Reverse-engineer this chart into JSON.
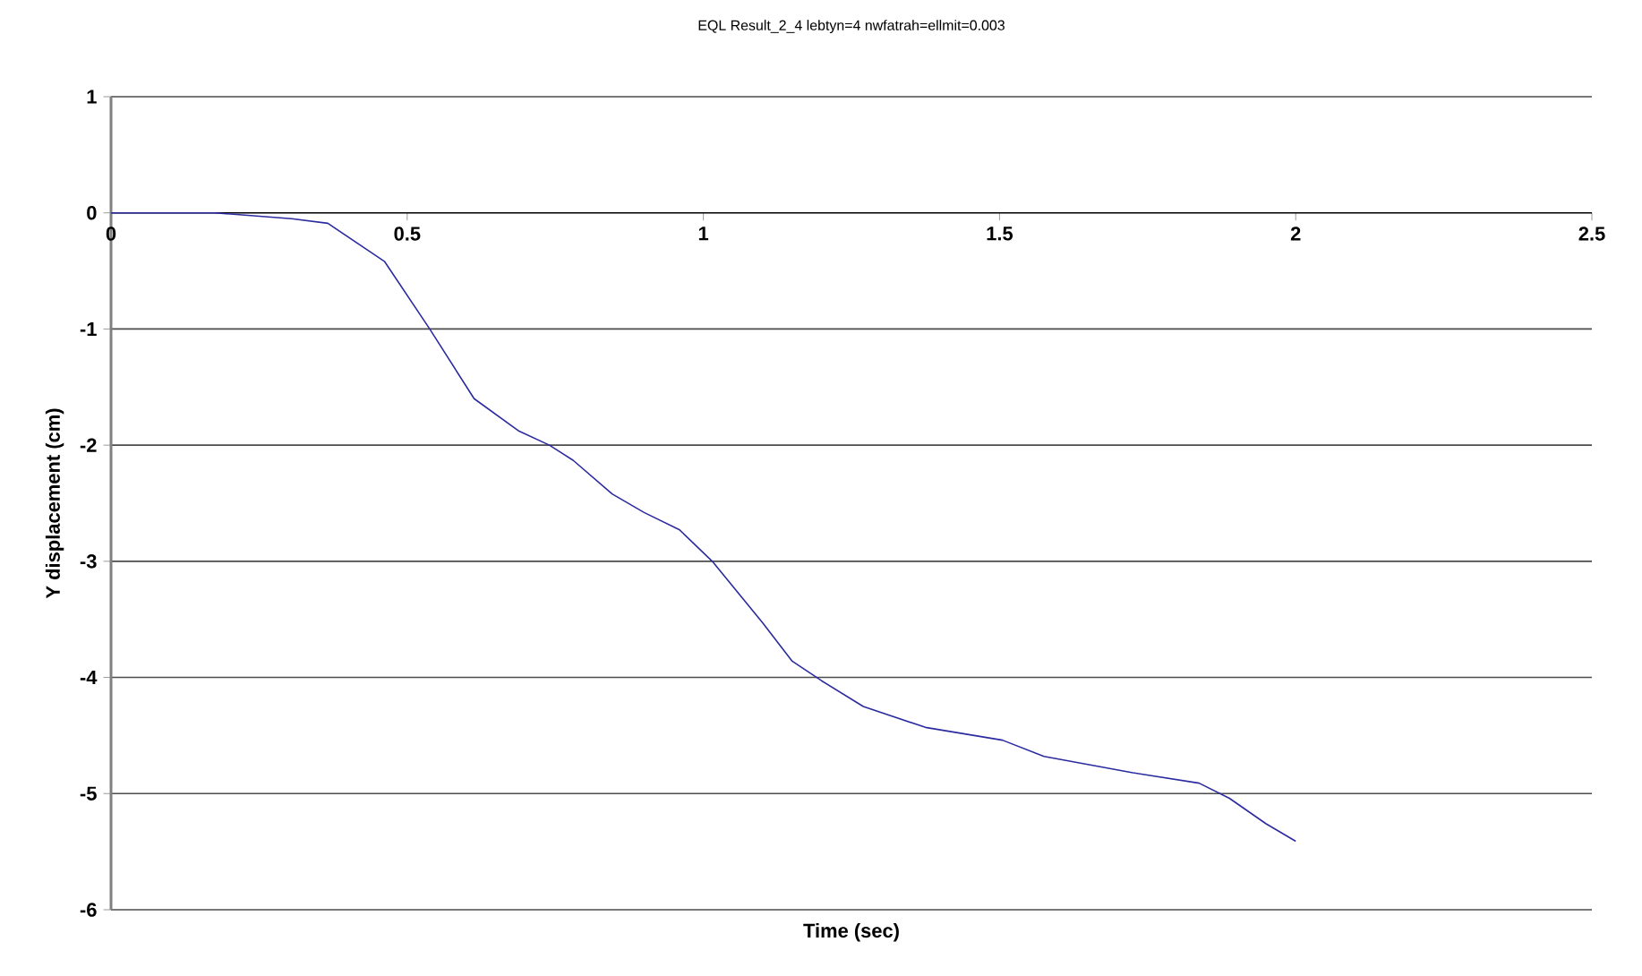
{
  "chart_data": {
    "type": "line",
    "title": "EQL Result_2_4 lebtyn=4 nwfatrah=ellmit=0.003",
    "xlabel": "Time (sec)",
    "ylabel": "Y displacement (cm)",
    "series": [
      {
        "color": "#2b2ba0",
        "x": [
          0,
          0.175,
          0.305,
          0.366,
          0.462,
          0.538,
          0.613,
          0.689,
          0.74,
          0.78,
          0.846,
          0.9,
          0.96,
          1.015,
          1.1,
          1.15,
          1.2,
          1.27,
          1.375,
          1.505,
          1.575,
          1.725,
          1.837,
          1.888,
          1.95,
          2.0
        ],
        "values": [
          0,
          0,
          -0.05,
          -0.09,
          -0.42,
          -1.0,
          -1.6,
          -1.88,
          -2.0,
          -2.13,
          -2.42,
          -2.58,
          -2.73,
          -3.0,
          -3.53,
          -3.86,
          -4.03,
          -4.25,
          -4.43,
          -4.54,
          -4.68,
          -4.82,
          -4.91,
          -5.04,
          -5.26,
          -5.41
        ]
      }
    ],
    "xlim": [
      0,
      2.5
    ],
    "xticks": [
      0,
      0.5,
      1,
      1.5,
      2,
      2.5
    ],
    "ylim": [
      -6,
      1
    ],
    "yticks": [
      -6,
      -5,
      -4,
      -3,
      -2,
      -1,
      0,
      1
    ],
    "grid": "y",
    "marker": "none",
    "line_style": "solid"
  }
}
